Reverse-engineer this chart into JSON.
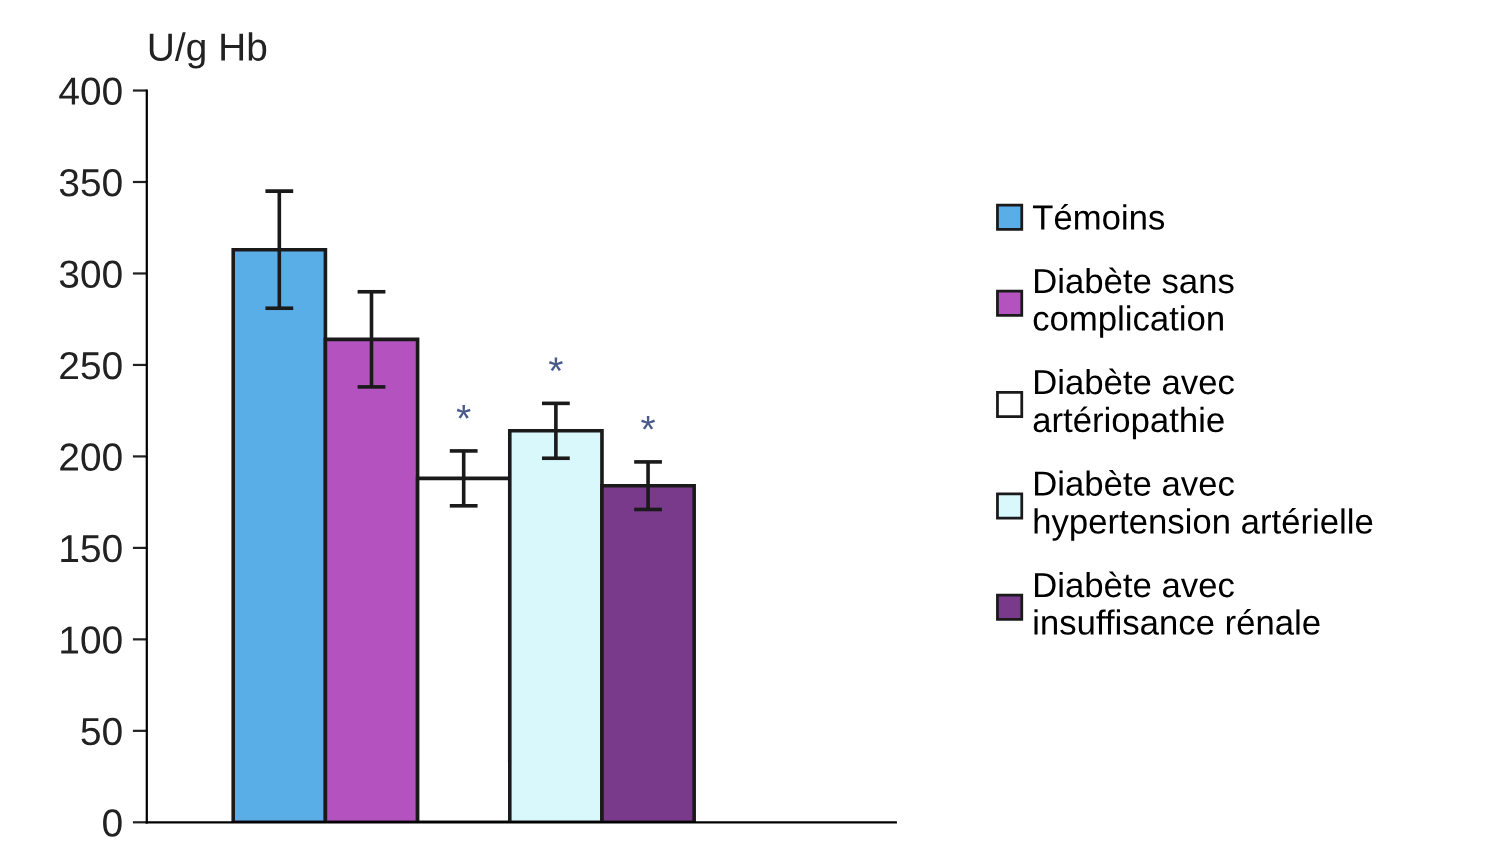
{
  "chart_data": {
    "type": "bar",
    "ylabel": "U/g Hb",
    "categories": [
      null
    ],
    "series": [
      {
        "name": "Témoins",
        "color": "#5aaee8",
        "values": [
          313
        ],
        "errors": [
          32
        ]
      },
      {
        "name": "Diabète sans complication",
        "color": "#b452c0",
        "values": [
          264
        ],
        "errors": [
          26
        ]
      },
      {
        "name": "Diabète avec artériopathie",
        "color": "#ffffff",
        "values": [
          188
        ],
        "errors": [
          15
        ],
        "value_labels": [
          "*"
        ]
      },
      {
        "name": "Diabète avec hypertension artérielle",
        "color": "#d8f8fc",
        "values": [
          214
        ],
        "errors": [
          15
        ],
        "value_labels": [
          "*"
        ]
      },
      {
        "name": "Diabète avec insuffisance rénale",
        "color": "#7a3a8c",
        "values": [
          184
        ],
        "errors": [
          13
        ],
        "value_labels": [
          "*"
        ]
      }
    ],
    "ylim": [
      0,
      400
    ],
    "yticks": [
      0,
      50,
      100,
      150,
      200,
      250,
      300,
      350,
      400
    ],
    "grid": false,
    "legend": "right"
  }
}
